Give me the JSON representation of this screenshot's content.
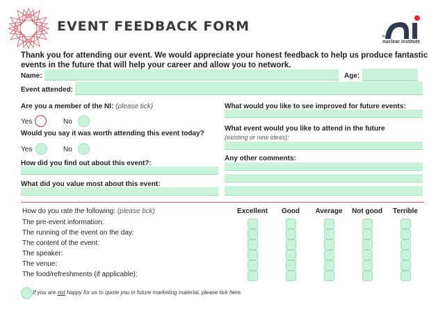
{
  "form": {
    "title": "EVENT FEEDBACK FORM",
    "intro": "Thank you for attending our event. We would appreciate your honest feedback to help us produce fantastic events in the future that will help your career and allow you to network.",
    "logo_line1": "the",
    "logo_line2": "nuclear institute",
    "logo_letters": "ni"
  },
  "fields": {
    "name_label": "Name:",
    "age_label": "Age:",
    "event_label": "Event attended:"
  },
  "left": {
    "member_q": "Are you a member of the NI:",
    "member_hint": "(please tick)",
    "yes": "Yes",
    "no": "No",
    "worth_q": "Would you say it was worth attending this event today?",
    "find_q": "How did you find out about this event?:",
    "value_q": "What did you value most about this event:"
  },
  "right": {
    "improve_q": "What would you like to see improved for future events:",
    "next_q": "What event would you like to attend in the future",
    "next_hint": "(existing or new ideas):",
    "comments_q": "Any other comments:"
  },
  "rating": {
    "question": "How do you rate the following:",
    "hint": "(please tick)",
    "columns": [
      "Excellent",
      "Good",
      "Average",
      "Not good",
      "Terrible"
    ],
    "rows": [
      "The pre-event information:",
      "The running of the event on the day:",
      "The content of the event:",
      "The speaker:",
      "The venue:",
      "The food/refreshments (if applicable):"
    ]
  },
  "footer": {
    "note_pre": "If you are ",
    "note_not": "not",
    "note_post": " happy for us to quote you in future marketing material, please tick here."
  },
  "colors": {
    "accent_red": "#e0293b",
    "field_green": "#c9f2da",
    "logo_navy": "#2f3b4c"
  }
}
